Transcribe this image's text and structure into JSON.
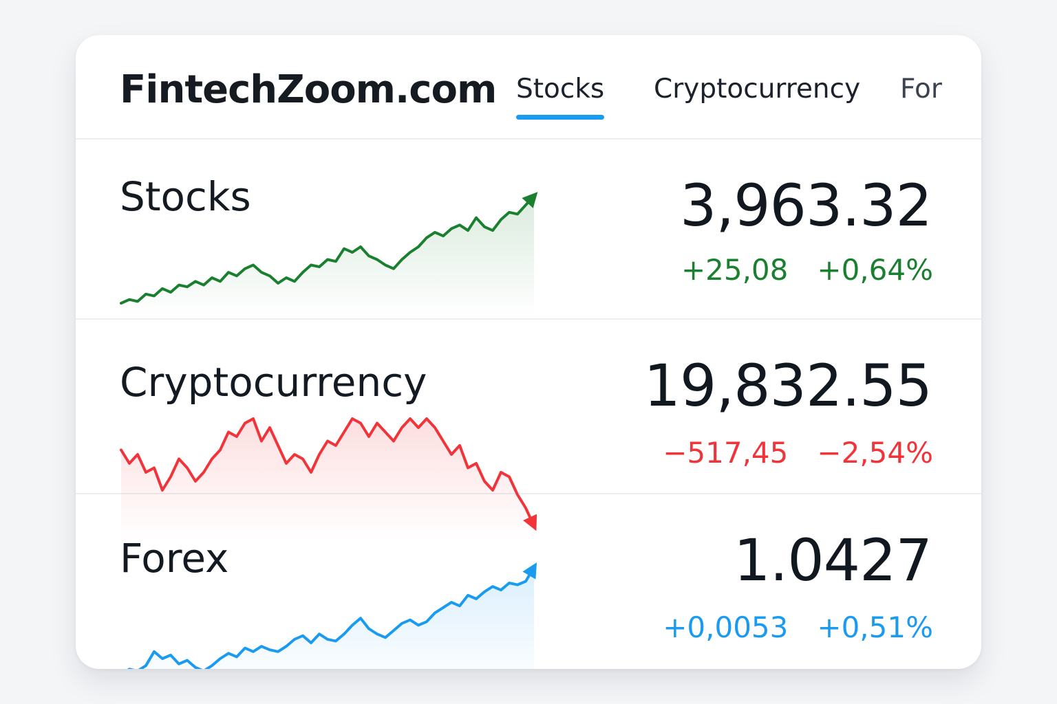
{
  "header": {
    "logo": "FintechZoom.com",
    "tabs": [
      {
        "label": "Stocks",
        "active": true
      },
      {
        "label": "Cryptocurrency",
        "active": false
      },
      {
        "label": "For",
        "active": false
      }
    ],
    "accent_color": "#1a9bf0"
  },
  "rows": [
    {
      "label": "Stocks",
      "price": "3,963.32",
      "change_abs": "+25,08",
      "change_pct": "+0,64%",
      "trend": "up",
      "color": "#1a7f2e",
      "sparkline": [
        10,
        14,
        12,
        20,
        18,
        26,
        22,
        30,
        28,
        34,
        30,
        38,
        34,
        44,
        40,
        48,
        52,
        44,
        40,
        32,
        38,
        34,
        44,
        52,
        50,
        58,
        56,
        70,
        66,
        72,
        62,
        58,
        52,
        48,
        58,
        66,
        72,
        82,
        88,
        84,
        92,
        96,
        90,
        104,
        94,
        90,
        102,
        110,
        108,
        118,
        128
      ]
    },
    {
      "label": "Cryptocurrency",
      "price": "19,832.55",
      "change_abs": "−517,45",
      "change_pct": "−2,54%",
      "trend": "down",
      "color": "#f1343a",
      "sparkline": [
        48,
        42,
        46,
        38,
        40,
        30,
        36,
        44,
        40,
        34,
        38,
        44,
        48,
        56,
        54,
        60,
        62,
        52,
        58,
        50,
        42,
        46,
        44,
        38,
        46,
        52,
        50,
        56,
        62,
        60,
        54,
        60,
        56,
        52,
        58,
        62,
        58,
        62,
        58,
        52,
        46,
        50,
        40,
        42,
        34,
        30,
        38,
        36,
        28,
        22,
        14
      ]
    },
    {
      "label": "Forex",
      "price": "1.0427",
      "change_abs": "+0,0053",
      "change_pct": "+0,51%",
      "trend": "up",
      "color": "#1a9bf0",
      "sparkline": [
        10,
        16,
        14,
        20,
        36,
        28,
        32,
        22,
        26,
        18,
        14,
        20,
        28,
        34,
        30,
        40,
        36,
        42,
        38,
        36,
        42,
        50,
        54,
        46,
        56,
        50,
        48,
        56,
        66,
        74,
        62,
        56,
        52,
        60,
        68,
        72,
        66,
        70,
        80,
        86,
        92,
        88,
        100,
        96,
        104,
        110,
        106,
        114,
        112,
        116,
        132
      ]
    }
  ]
}
